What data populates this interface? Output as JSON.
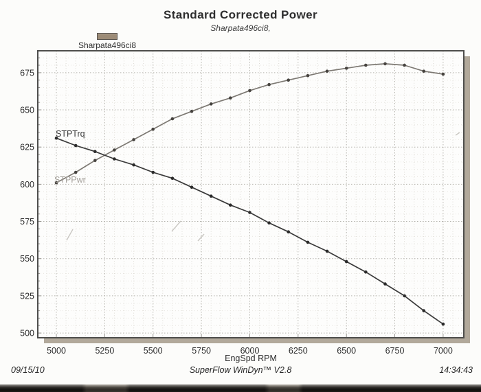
{
  "title": "Standard Corrected Power",
  "subtitle": "Sharpata496ci8,",
  "legend": {
    "label": "Sharpata496ci8"
  },
  "footer": {
    "date": "09/15/10",
    "app": "SuperFlow WinDyn™ V2.8",
    "time": "14:34:43"
  },
  "colors": {
    "page_bg": "#fcfcfa",
    "plot_bg": "#fdfdfc",
    "border": "#4d4d4b",
    "shadow": "#b2a99b",
    "grid_major": "#b4b2ab",
    "grid_minor_v": "#dcdad3",
    "grid_minor_h": "#e7e5df",
    "tick": "#979590",
    "text": "#2d2d2d",
    "legend_swatch": "#9c8b76",
    "torque_line": "#3a3a3a",
    "torque_marker": "#2b2b2b",
    "power_line": "#7d7973",
    "power_marker": "#46433f",
    "power_label": "#a5a19b",
    "artifact": "#c9c7c2"
  },
  "chart_data": {
    "type": "line",
    "title": "Standard Corrected Power",
    "subtitle": "Sharpata496ci8,",
    "xlabel": "EngSpd RPM",
    "ylabel": "",
    "legend_position": "top-left",
    "legend_entries": [
      "Sharpata496ci8"
    ],
    "grid": true,
    "x": [
      5000,
      5100,
      5200,
      5300,
      5400,
      5500,
      5600,
      5700,
      5800,
      5900,
      6000,
      6100,
      6200,
      6300,
      6400,
      6500,
      6600,
      6700,
      6800,
      6900,
      7000
    ],
    "series": [
      {
        "name": "STPTrq",
        "values": [
          631,
          626,
          622,
          617,
          613,
          608,
          604,
          598,
          592,
          586,
          581,
          574,
          568,
          561,
          555,
          548,
          541,
          533,
          525,
          515,
          506
        ]
      },
      {
        "name": "STPPwr",
        "values": [
          601,
          608,
          616,
          623,
          630,
          637,
          644,
          649,
          654,
          658,
          663,
          667,
          670,
          673,
          676,
          678,
          680,
          681,
          680,
          676,
          674
        ]
      }
    ],
    "xticks": [
      5000,
      5250,
      5500,
      5750,
      6000,
      6250,
      6500,
      6750,
      7000
    ],
    "yticks": [
      500,
      525,
      550,
      575,
      600,
      625,
      650,
      675
    ],
    "xlim": [
      4904,
      7107
    ],
    "ylim": [
      496.8,
      689.7
    ],
    "x_minor_step": 50,
    "y_minor_step": 5
  }
}
